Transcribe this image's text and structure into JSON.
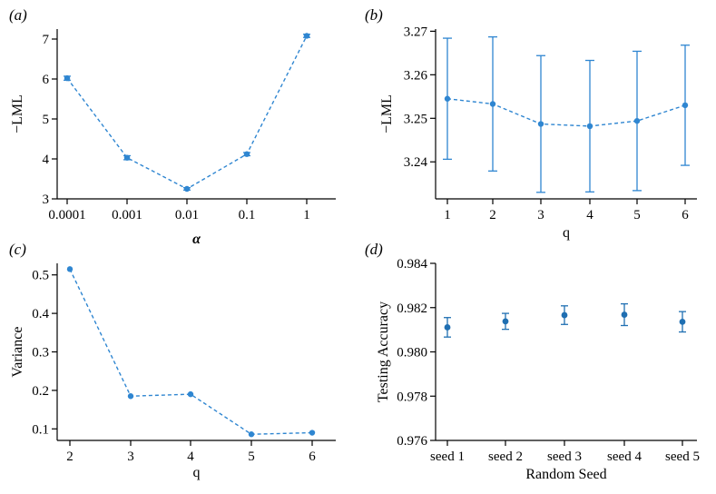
{
  "chart_data": [
    {
      "panel": "(a)",
      "type": "line",
      "categories": [
        "0.0001",
        "0.001",
        "0.01",
        "0.1",
        "1"
      ],
      "values": [
        6.02,
        4.03,
        3.25,
        4.12,
        7.08
      ],
      "errors": [
        0.05,
        0.05,
        0.03,
        0.04,
        0.04
      ],
      "xlabel": "α",
      "ylabel": "−LML",
      "ylim": [
        3,
        7.25
      ],
      "yticks": [
        3,
        4,
        5,
        6,
        7
      ],
      "ytick_labels": [
        "3",
        "4",
        "5",
        "6",
        "7"
      ],
      "color": "#2f86d1"
    },
    {
      "panel": "(b)",
      "type": "line",
      "categories": [
        "1",
        "2",
        "3",
        "4",
        "5",
        "6"
      ],
      "values": [
        3.2545,
        3.2533,
        3.2487,
        3.2482,
        3.2494,
        3.253
      ],
      "errors": [
        0.0139,
        0.0154,
        0.0157,
        0.0151,
        0.016,
        0.0138
      ],
      "xlabel": "q",
      "ylabel": "−LML",
      "ylim": [
        3.2315,
        3.2705
      ],
      "yticks": [
        3.24,
        3.25,
        3.26,
        3.27
      ],
      "ytick_labels": [
        "3.24",
        "3.25",
        "3.26",
        "3.27"
      ],
      "color": "#2f86d1"
    },
    {
      "panel": "(c)",
      "type": "line",
      "categories": [
        "2",
        "3",
        "4",
        "5",
        "6"
      ],
      "values": [
        0.515,
        0.185,
        0.19,
        0.086,
        0.09
      ],
      "errors": [
        0,
        0,
        0,
        0,
        0
      ],
      "xlabel": "q",
      "ylabel": "Variance",
      "ylim": [
        0.07,
        0.53
      ],
      "yticks": [
        0.1,
        0.2,
        0.3,
        0.4,
        0.5
      ],
      "ytick_labels": [
        "0.1",
        "0.2",
        "0.3",
        "0.4",
        "0.5"
      ],
      "color": "#2f86d1"
    },
    {
      "panel": "(d)",
      "type": "scatter",
      "categories": [
        "seed 1",
        "seed 2",
        "seed 3",
        "seed 4",
        "seed 5"
      ],
      "values": [
        0.98111,
        0.98138,
        0.98166,
        0.98168,
        0.98136
      ],
      "errors": [
        0.00044,
        0.00036,
        0.00042,
        0.00049,
        0.00046
      ],
      "xlabel": "Random Seed",
      "ylabel": "Testing Accuracy",
      "ylim": [
        0.976,
        0.984
      ],
      "yticks": [
        0.976,
        0.978,
        0.98,
        0.982,
        0.984
      ],
      "ytick_labels": [
        "0.976",
        "0.978",
        "0.980",
        "0.982",
        "0.984"
      ],
      "color": "#1f6fb2"
    }
  ]
}
